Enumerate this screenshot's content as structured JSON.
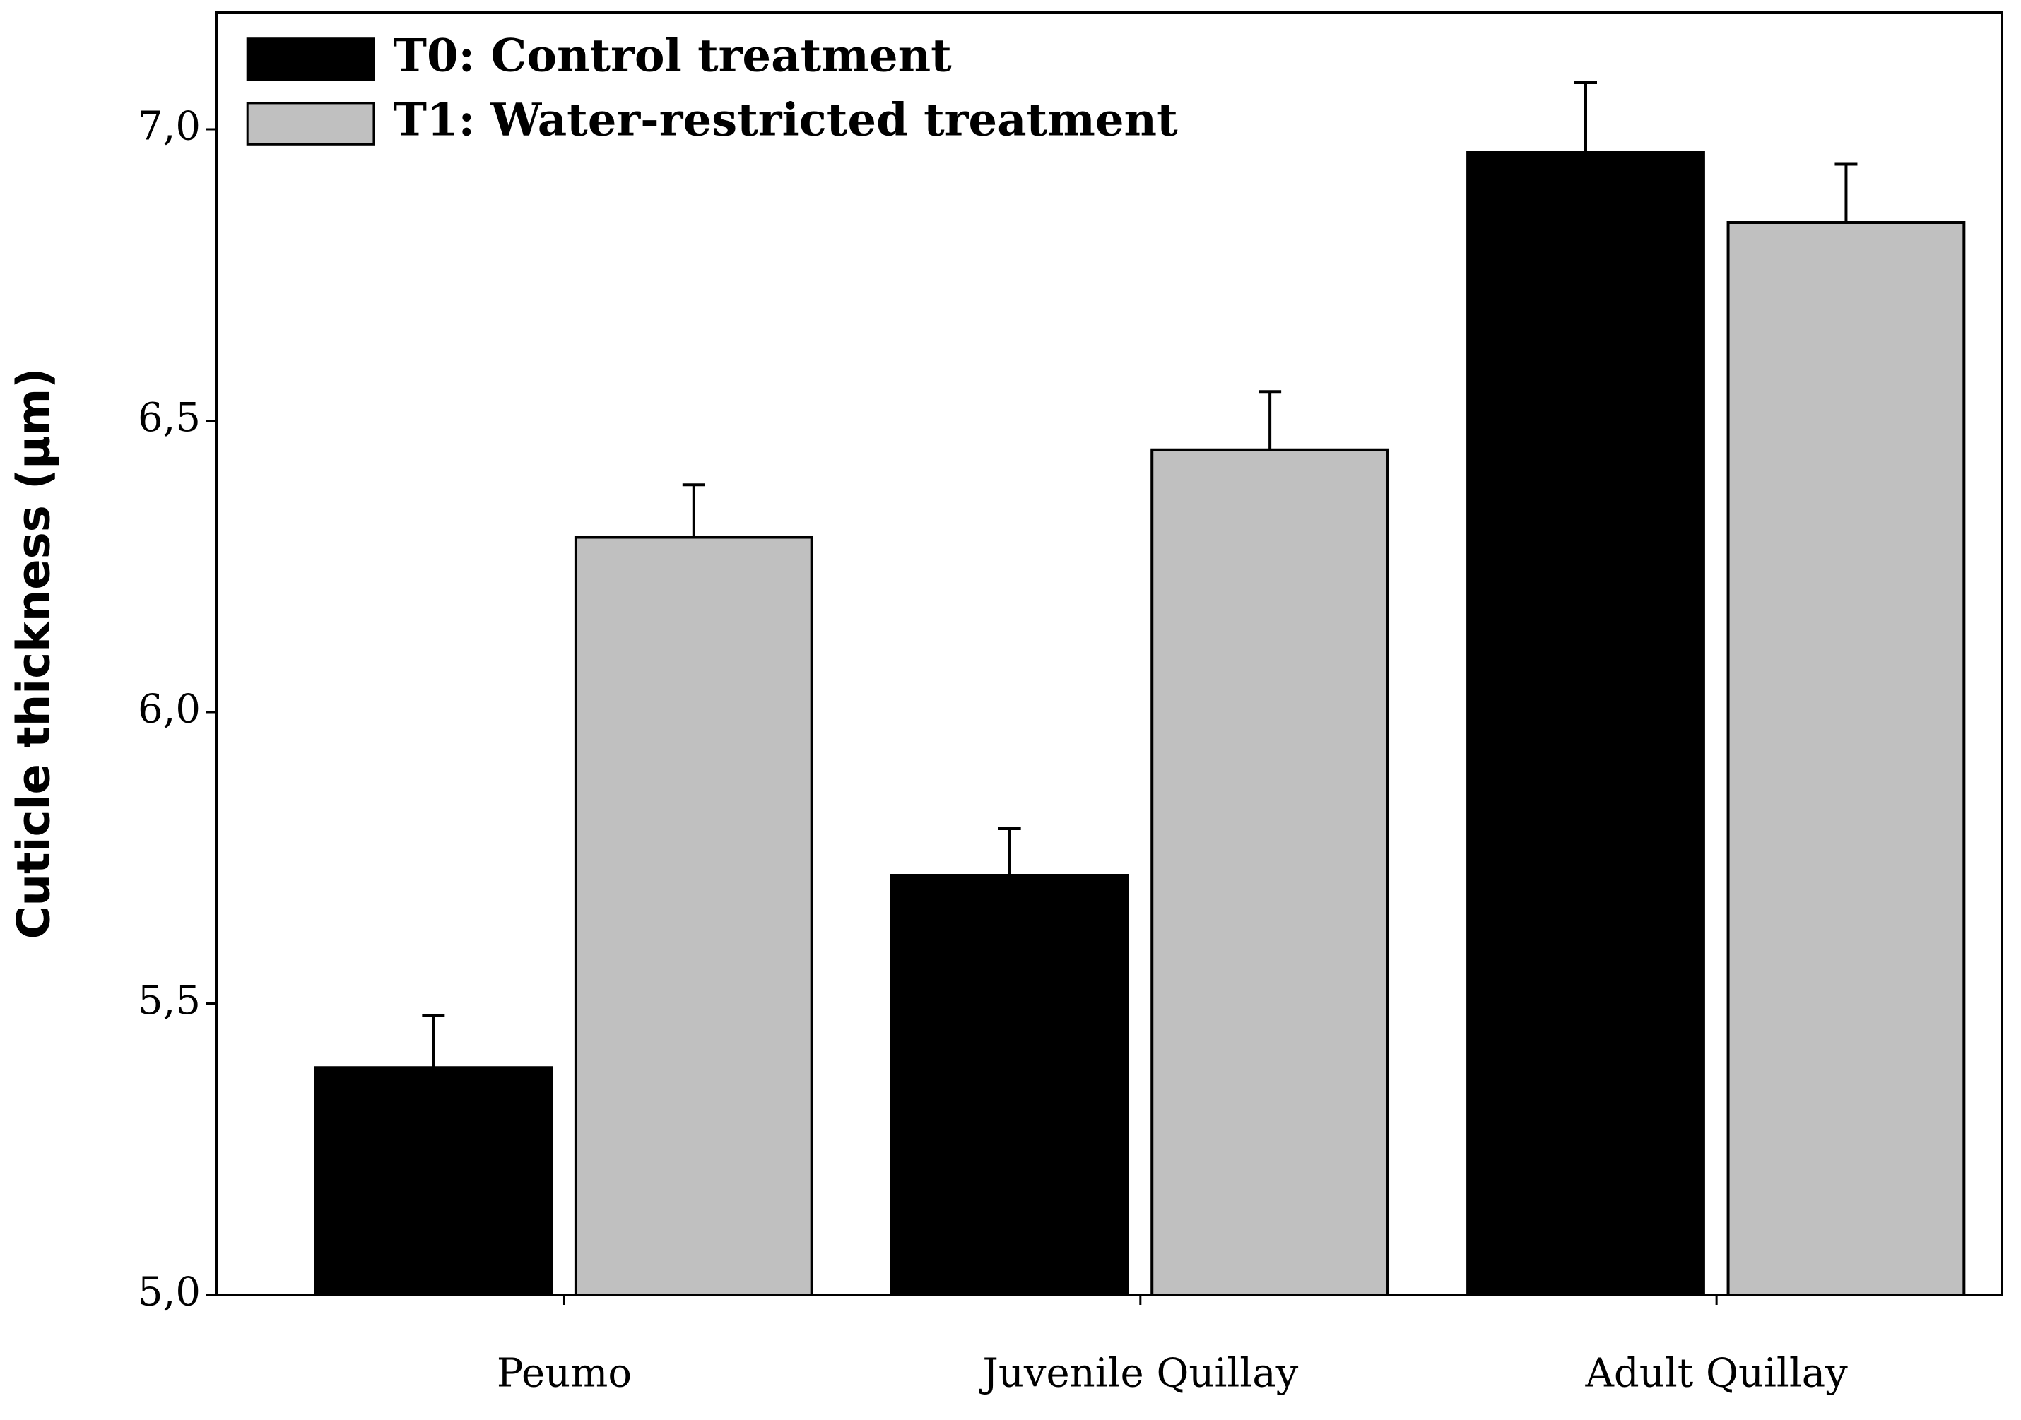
{
  "chart_data": {
    "type": "bar",
    "y_label": "Cuticle thickness (µm)",
    "categories": [
      "Peumo",
      "Juvenile Quillay",
      "Adult Quillay"
    ],
    "series": [
      {
        "name": "T0: Control treatment",
        "color": "#000000",
        "values": [
          5.39,
          5.72,
          6.96
        ],
        "errors": [
          0.09,
          0.08,
          0.12
        ]
      },
      {
        "name": "T1: Water-restricted treatment",
        "color": "#c0c0c0",
        "values": [
          6.3,
          6.45,
          6.84
        ],
        "errors": [
          0.09,
          0.1,
          0.1
        ]
      }
    ],
    "ylim": [
      5,
      7.2
    ],
    "yticks": [
      {
        "value": 5,
        "label": "5,0"
      },
      {
        "value": 5.5,
        "label": "5,5"
      },
      {
        "value": 6,
        "label": "6,0"
      },
      {
        "value": 6.5,
        "label": "6,5"
      },
      {
        "value": 7,
        "label": "7,0"
      }
    ],
    "legend": "upper left"
  }
}
